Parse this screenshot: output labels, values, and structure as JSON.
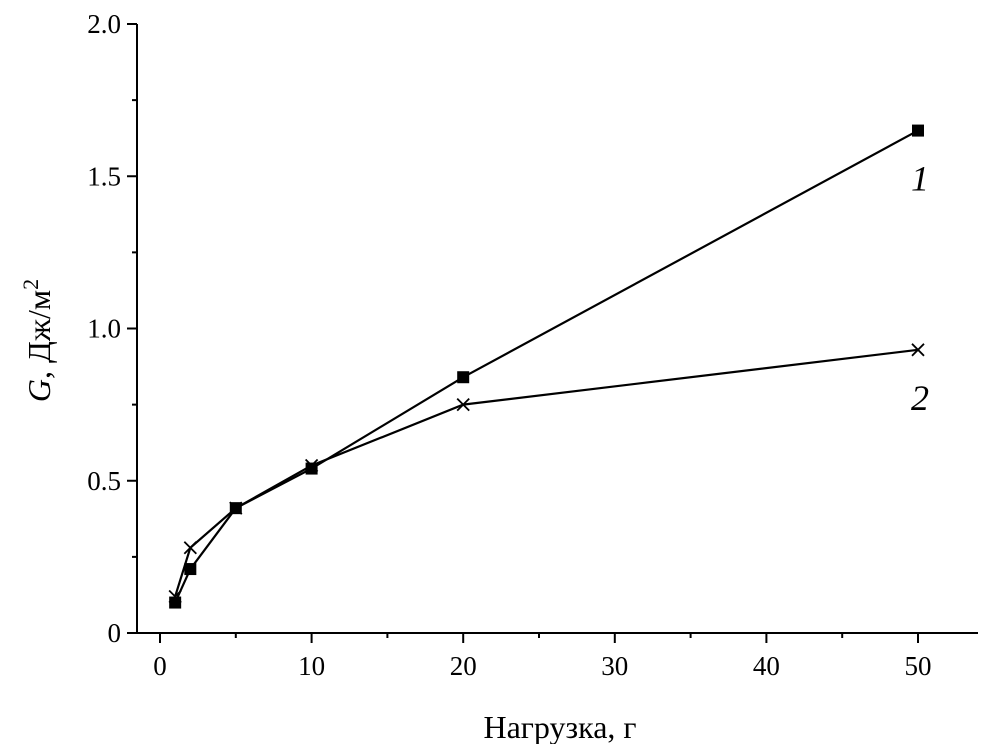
{
  "chart_data": {
    "type": "line",
    "title": "",
    "xlabel": "Нагрузка, г",
    "ylabel": {
      "var": "G",
      "unit": ", Дж/м",
      "sup": "2"
    },
    "x_tick_labels": [
      "0",
      "10",
      "20",
      "30",
      "40",
      "50"
    ],
    "x_ticks_positions": [
      0,
      10,
      20,
      30,
      40,
      50
    ],
    "y_tick_labels": [
      "0",
      "0.5",
      "1.0",
      "1.5",
      "2.0"
    ],
    "y_ticks": [
      0,
      0.5,
      1.0,
      1.5,
      2.0
    ],
    "ylim": [
      0,
      2.0
    ],
    "grid": false,
    "legend": "none",
    "series": [
      {
        "name": "1",
        "marker": "square",
        "x_labels": [
          "1",
          "2",
          "5",
          "10",
          "20",
          "50"
        ],
        "x_positions": [
          1,
          2,
          5,
          10,
          20,
          50
        ],
        "values": [
          0.1,
          0.21,
          0.41,
          0.54,
          0.84,
          1.65
        ]
      },
      {
        "name": "2",
        "marker": "cross",
        "x_labels": [
          "1",
          "2",
          "5",
          "10",
          "20",
          "50"
        ],
        "x_positions": [
          1,
          2,
          5,
          10,
          20,
          50
        ],
        "values": [
          0.12,
          0.28,
          0.41,
          0.55,
          0.75,
          0.93
        ]
      }
    ]
  }
}
